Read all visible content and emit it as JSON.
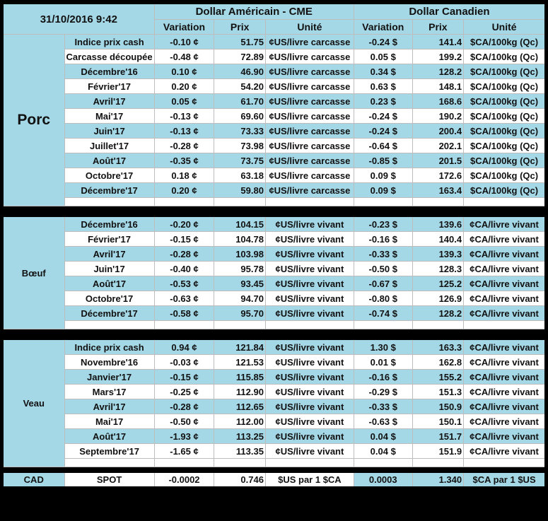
{
  "colors": {
    "row_blue": "#A5D8E6",
    "positive_green": "#00A551",
    "negative_red": "#F40000",
    "grid_black": "#000000"
  },
  "chart_data": {
    "type": "table",
    "datetime": "31/10/2016 9:42",
    "column_groups": [
      {
        "title": "Dollar Américain - CME",
        "columns": [
          "Variation",
          "Prix",
          "Unité"
        ]
      },
      {
        "title": "Dollar Canadien",
        "columns": [
          "Variation",
          "Prix",
          "Unité"
        ]
      }
    ],
    "sections": [
      {
        "name": "Porc",
        "trailing_empty": true,
        "striped": true,
        "ca_highlight": false,
        "rows": [
          {
            "label": "Indice prix cash",
            "us_var": "-0.10 ¢",
            "us_prix": "51.75",
            "us_unit": "¢US/livre carcasse",
            "ca_var": "-0.24 $",
            "ca_prix": "141.4",
            "ca_unit": "$CA/100kg (Qc)"
          },
          {
            "label": "Carcasse découpée",
            "us_var": "-0.48 ¢",
            "us_prix": "72.89",
            "us_unit": "¢US/livre carcasse",
            "ca_var": "0.05 $",
            "ca_prix": "199.2",
            "ca_unit": "$CA/100kg (Qc)"
          },
          {
            "label": "Décembre'16",
            "us_var": "0.10 ¢",
            "us_prix": "46.90",
            "us_unit": "¢US/livre carcasse",
            "ca_var": "0.34 $",
            "ca_prix": "128.2",
            "ca_unit": "$CA/100kg (Qc)"
          },
          {
            "label": "Février'17",
            "us_var": "0.20 ¢",
            "us_prix": "54.20",
            "us_unit": "¢US/livre carcasse",
            "ca_var": "0.63 $",
            "ca_prix": "148.1",
            "ca_unit": "$CA/100kg (Qc)"
          },
          {
            "label": "Avril'17",
            "us_var": "0.05 ¢",
            "us_prix": "61.70",
            "us_unit": "¢US/livre carcasse",
            "ca_var": "0.23 $",
            "ca_prix": "168.6",
            "ca_unit": "$CA/100kg (Qc)"
          },
          {
            "label": "Mai'17",
            "us_var": "-0.13 ¢",
            "us_prix": "69.60",
            "us_unit": "¢US/livre carcasse",
            "ca_var": "-0.24 $",
            "ca_prix": "190.2",
            "ca_unit": "$CA/100kg (Qc)"
          },
          {
            "label": "Juin'17",
            "us_var": "-0.13 ¢",
            "us_prix": "73.33",
            "us_unit": "¢US/livre carcasse",
            "ca_var": "-0.24 $",
            "ca_prix": "200.4",
            "ca_unit": "$CA/100kg (Qc)"
          },
          {
            "label": "Juillet'17",
            "us_var": "-0.28 ¢",
            "us_prix": "73.98",
            "us_unit": "¢US/livre carcasse",
            "ca_var": "-0.64 $",
            "ca_prix": "202.1",
            "ca_unit": "$CA/100kg (Qc)"
          },
          {
            "label": "Août'17",
            "us_var": "-0.35 ¢",
            "us_prix": "73.75",
            "us_unit": "¢US/livre carcasse",
            "ca_var": "-0.85 $",
            "ca_prix": "201.5",
            "ca_unit": "$CA/100kg (Qc)"
          },
          {
            "label": "Octobre'17",
            "us_var": "0.18 ¢",
            "us_prix": "63.18",
            "us_unit": "¢US/livre carcasse",
            "ca_var": "0.09 $",
            "ca_prix": "172.6",
            "ca_unit": "$CA/100kg (Qc)"
          },
          {
            "label": "Décembre'17",
            "us_var": "0.20 ¢",
            "us_prix": "59.80",
            "us_unit": "¢US/livre carcasse",
            "ca_var": "0.09 $",
            "ca_prix": "163.4",
            "ca_unit": "$CA/100kg (Qc)"
          }
        ]
      },
      {
        "name": "Bœuf",
        "trailing_empty": true,
        "striped": true,
        "ca_highlight": false,
        "rows": [
          {
            "label": "Décembre'16",
            "us_var": "-0.20 ¢",
            "us_prix": "104.15",
            "us_unit": "¢US/livre vivant",
            "ca_var": "-0.23 $",
            "ca_prix": "139.6",
            "ca_unit": "¢CA/livre vivant"
          },
          {
            "label": "Février'17",
            "us_var": "-0.15 ¢",
            "us_prix": "104.78",
            "us_unit": "¢US/livre vivant",
            "ca_var": "-0.16 $",
            "ca_prix": "140.4",
            "ca_unit": "¢CA/livre vivant"
          },
          {
            "label": "Avril'17",
            "us_var": "-0.28 ¢",
            "us_prix": "103.98",
            "us_unit": "¢US/livre vivant",
            "ca_var": "-0.33 $",
            "ca_prix": "139.3",
            "ca_unit": "¢CA/livre vivant"
          },
          {
            "label": "Juin'17",
            "us_var": "-0.40 ¢",
            "us_prix": "95.78",
            "us_unit": "¢US/livre vivant",
            "ca_var": "-0.50 $",
            "ca_prix": "128.3",
            "ca_unit": "¢CA/livre vivant"
          },
          {
            "label": "Août'17",
            "us_var": "-0.53 ¢",
            "us_prix": "93.45",
            "us_unit": "¢US/livre vivant",
            "ca_var": "-0.67 $",
            "ca_prix": "125.2",
            "ca_unit": "¢CA/livre vivant"
          },
          {
            "label": "Octobre'17",
            "us_var": "-0.63 ¢",
            "us_prix": "94.70",
            "us_unit": "¢US/livre vivant",
            "ca_var": "-0.80 $",
            "ca_prix": "126.9",
            "ca_unit": "¢CA/livre vivant"
          },
          {
            "label": "Décembre'17",
            "us_var": "-0.58 ¢",
            "us_prix": "95.70",
            "us_unit": "¢US/livre vivant",
            "ca_var": "-0.74 $",
            "ca_prix": "128.2",
            "ca_unit": "¢CA/livre vivant"
          }
        ]
      },
      {
        "name": "Veau",
        "trailing_empty": true,
        "striped": true,
        "ca_highlight": false,
        "rows": [
          {
            "label": "Indice prix cash",
            "us_var": "0.94 ¢",
            "us_prix": "121.84",
            "us_unit": "¢US/livre vivant",
            "ca_var": "1.30 $",
            "ca_prix": "163.3",
            "ca_unit": "¢CA/livre vivant"
          },
          {
            "label": "Novembre'16",
            "us_var": "-0.03 ¢",
            "us_prix": "121.53",
            "us_unit": "¢US/livre vivant",
            "ca_var": "0.01 $",
            "ca_prix": "162.8",
            "ca_unit": "¢CA/livre vivant"
          },
          {
            "label": "Janvier'17",
            "us_var": "-0.15 ¢",
            "us_prix": "115.85",
            "us_unit": "¢US/livre vivant",
            "ca_var": "-0.16 $",
            "ca_prix": "155.2",
            "ca_unit": "¢CA/livre vivant"
          },
          {
            "label": "Mars'17",
            "us_var": "-0.25 ¢",
            "us_prix": "112.90",
            "us_unit": "¢US/livre vivant",
            "ca_var": "-0.29 $",
            "ca_prix": "151.3",
            "ca_unit": "¢CA/livre vivant"
          },
          {
            "label": "Avril'17",
            "us_var": "-0.28 ¢",
            "us_prix": "112.65",
            "us_unit": "¢US/livre vivant",
            "ca_var": "-0.33 $",
            "ca_prix": "150.9",
            "ca_unit": "¢CA/livre vivant"
          },
          {
            "label": "Mai'17",
            "us_var": "-0.50 ¢",
            "us_prix": "112.00",
            "us_unit": "¢US/livre vivant",
            "ca_var": "-0.63 $",
            "ca_prix": "150.1",
            "ca_unit": "¢CA/livre vivant"
          },
          {
            "label": "Août'17",
            "us_var": "-1.93 ¢",
            "us_prix": "113.25",
            "us_unit": "¢US/livre vivant",
            "ca_var": "0.04 $",
            "ca_prix": "151.7",
            "ca_unit": "¢CA/livre vivant"
          },
          {
            "label": "Septembre'17",
            "us_var": "-1.65 ¢",
            "us_prix": "113.35",
            "us_unit": "¢US/livre vivant",
            "ca_var": "0.04 $",
            "ca_prix": "151.9",
            "ca_unit": "¢CA/livre vivant"
          }
        ]
      },
      {
        "name": "CAD",
        "trailing_empty": false,
        "striped": false,
        "ca_highlight": true,
        "rows": [
          {
            "label": "SPOT",
            "us_var": "-0.0002",
            "us_prix": "0.746",
            "us_unit": "$US par 1 $CA",
            "ca_var": "0.0003",
            "ca_prix": "1.340",
            "ca_unit": "$CA par 1 $US"
          }
        ]
      }
    ]
  }
}
